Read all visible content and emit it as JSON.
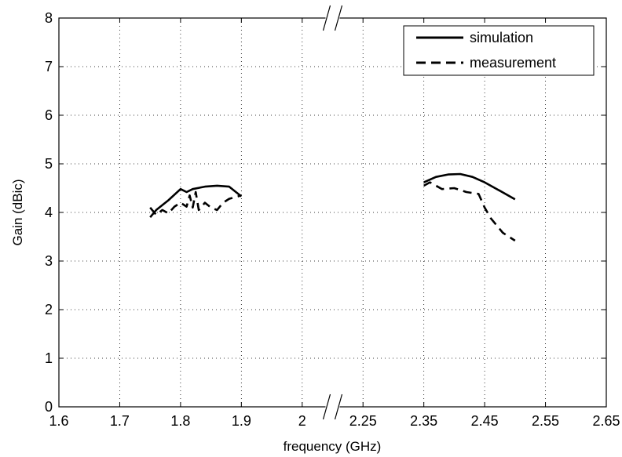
{
  "chart_data": {
    "type": "line",
    "title": "",
    "xlabel": "frequency (GHz)",
    "ylabel": "Gain (dBic)",
    "ylim": [
      0,
      8
    ],
    "yticks": [
      "0",
      "1",
      "2",
      "3",
      "4",
      "5",
      "6",
      "7",
      "8"
    ],
    "xticks": [
      "1.6",
      "1.7",
      "1.8",
      "1.9",
      "2",
      "2.25",
      "2.35",
      "2.45",
      "2.55",
      "2.65"
    ],
    "x_axis_break": "between 2 and 2.25",
    "grid": true,
    "legend_position": "top-right",
    "series": [
      {
        "name": "simulation",
        "style": "solid",
        "segments": [
          {
            "x": [
              1.75,
              1.76,
              1.78,
              1.8,
              1.81,
              1.82,
              1.84,
              1.86,
              1.88,
              1.9
            ],
            "y": [
              3.9,
              4.05,
              4.25,
              4.48,
              4.42,
              4.48,
              4.53,
              4.55,
              4.53,
              4.33
            ]
          },
          {
            "x": [
              2.35,
              2.37,
              2.39,
              2.41,
              2.43,
              2.45,
              2.47,
              2.5
            ],
            "y": [
              4.62,
              4.73,
              4.78,
              4.79,
              4.73,
              4.62,
              4.48,
              4.27
            ]
          }
        ]
      },
      {
        "name": "measurement",
        "style": "dashed",
        "segments": [
          {
            "x": [
              1.75,
              1.76,
              1.77,
              1.78,
              1.79,
              1.8,
              1.81,
              1.815,
              1.82,
              1.825,
              1.83,
              1.84,
              1.85,
              1.86,
              1.87,
              1.88,
              1.9
            ],
            "y": [
              4.1,
              3.95,
              4.05,
              3.98,
              4.12,
              4.2,
              4.12,
              4.35,
              4.1,
              4.42,
              4.05,
              4.2,
              4.1,
              4.05,
              4.2,
              4.28,
              4.35
            ]
          },
          {
            "x": [
              2.35,
              2.36,
              2.38,
              2.4,
              2.42,
              2.44,
              2.45,
              2.46,
              2.48,
              2.5
            ],
            "y": [
              4.55,
              4.62,
              4.48,
              4.5,
              4.42,
              4.38,
              4.1,
              3.88,
              3.58,
              3.42
            ]
          }
        ]
      }
    ]
  }
}
